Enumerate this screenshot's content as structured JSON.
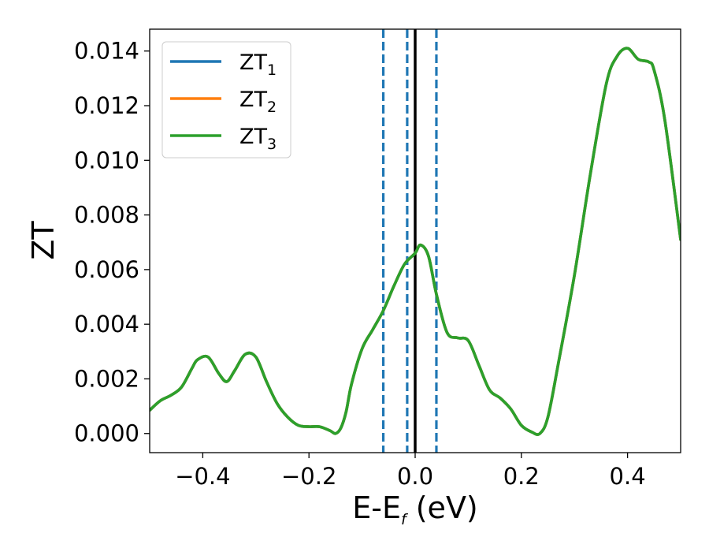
{
  "chart_data": {
    "type": "line",
    "title": "",
    "xlabel": {
      "main": "E-E",
      "sub": "f",
      "suffix": " (eV)"
    },
    "ylabel": "ZT",
    "xlim": [
      -0.5,
      0.5
    ],
    "ylim": [
      -0.0007,
      0.0148
    ],
    "x_ticks": [
      {
        "value": -0.4,
        "label": "−0.4"
      },
      {
        "value": -0.2,
        "label": "−0.2"
      },
      {
        "value": 0.0,
        "label": "0.0"
      },
      {
        "value": 0.2,
        "label": "0.2"
      },
      {
        "value": 0.4,
        "label": "0.4"
      }
    ],
    "y_ticks": [
      {
        "value": 0.0,
        "label": "0.000"
      },
      {
        "value": 0.002,
        "label": "0.002"
      },
      {
        "value": 0.004,
        "label": "0.004"
      },
      {
        "value": 0.006,
        "label": "0.006"
      },
      {
        "value": 0.008,
        "label": "0.008"
      },
      {
        "value": 0.01,
        "label": "0.010"
      },
      {
        "value": 0.012,
        "label": "0.012"
      },
      {
        "value": 0.014,
        "label": "0.014"
      }
    ],
    "grid": false,
    "legend": {
      "placement": "top-left"
    },
    "vertical_lines": [
      {
        "x": -0.06,
        "style": "dashed",
        "color": "#1f77b4"
      },
      {
        "x": -0.015,
        "style": "dashed",
        "color": "#1f77b4"
      },
      {
        "x": 0.0,
        "style": "solid",
        "color": "#000000"
      },
      {
        "x": 0.04,
        "style": "dashed",
        "color": "#1f77b4"
      }
    ],
    "x": [
      -0.5,
      -0.48,
      -0.46,
      -0.44,
      -0.42,
      -0.41,
      -0.39,
      -0.37,
      -0.355,
      -0.34,
      -0.32,
      -0.3,
      -0.28,
      -0.26,
      -0.24,
      -0.22,
      -0.2,
      -0.18,
      -0.16,
      -0.15,
      -0.14,
      -0.13,
      -0.12,
      -0.1,
      -0.08,
      -0.06,
      -0.04,
      -0.02,
      0.0,
      0.01,
      0.025,
      0.04,
      0.06,
      0.08,
      0.1,
      0.12,
      0.14,
      0.16,
      0.18,
      0.2,
      0.22,
      0.235,
      0.25,
      0.27,
      0.3,
      0.33,
      0.36,
      0.38,
      0.4,
      0.42,
      0.44,
      0.45,
      0.47,
      0.5
    ],
    "series": [
      {
        "name": "ZT",
        "sub": "1",
        "color": "#1f77b4",
        "values": [
          0.00085,
          0.0012,
          0.0014,
          0.0017,
          0.0024,
          0.0027,
          0.0028,
          0.0022,
          0.0019,
          0.0023,
          0.0029,
          0.0028,
          0.0019,
          0.0011,
          0.0006,
          0.0003,
          0.00025,
          0.00025,
          0.0001,
          0.0,
          0.0002,
          0.0008,
          0.0018,
          0.0031,
          0.0038,
          0.0045,
          0.0054,
          0.0062,
          0.0066,
          0.0069,
          0.0065,
          0.0051,
          0.0037,
          0.0035,
          0.0034,
          0.0025,
          0.0016,
          0.0013,
          0.0009,
          0.0003,
          5e-05,
          0.0,
          0.0006,
          0.0026,
          0.0058,
          0.0095,
          0.0128,
          0.0138,
          0.0141,
          0.0137,
          0.0136,
          0.0133,
          0.0115,
          0.0071
        ]
      },
      {
        "name": "ZT",
        "sub": "2",
        "color": "#ff7f0e",
        "values": [
          0.00085,
          0.0012,
          0.0014,
          0.0017,
          0.0024,
          0.0027,
          0.0028,
          0.0022,
          0.0019,
          0.0023,
          0.0029,
          0.0028,
          0.0019,
          0.0011,
          0.0006,
          0.0003,
          0.00025,
          0.00025,
          0.0001,
          0.0,
          0.0002,
          0.0008,
          0.0018,
          0.0031,
          0.0038,
          0.0045,
          0.0054,
          0.0062,
          0.0066,
          0.0069,
          0.0065,
          0.0051,
          0.0037,
          0.0035,
          0.0034,
          0.0025,
          0.0016,
          0.0013,
          0.0009,
          0.0003,
          5e-05,
          0.0,
          0.0006,
          0.0026,
          0.0058,
          0.0095,
          0.0128,
          0.0138,
          0.0141,
          0.0137,
          0.0136,
          0.0133,
          0.0115,
          0.0071
        ]
      },
      {
        "name": "ZT",
        "sub": "3",
        "color": "#2ca02c",
        "values": [
          0.00085,
          0.0012,
          0.0014,
          0.0017,
          0.0024,
          0.0027,
          0.0028,
          0.0022,
          0.0019,
          0.0023,
          0.0029,
          0.0028,
          0.0019,
          0.0011,
          0.0006,
          0.0003,
          0.00025,
          0.00025,
          0.0001,
          0.0,
          0.0002,
          0.0008,
          0.0018,
          0.0031,
          0.0038,
          0.0045,
          0.0054,
          0.0062,
          0.0066,
          0.0069,
          0.0065,
          0.0051,
          0.0037,
          0.0035,
          0.0034,
          0.0025,
          0.0016,
          0.0013,
          0.0009,
          0.0003,
          5e-05,
          0.0,
          0.0006,
          0.0026,
          0.0058,
          0.0095,
          0.0128,
          0.0138,
          0.0141,
          0.0137,
          0.0136,
          0.0133,
          0.0115,
          0.0071
        ]
      }
    ]
  }
}
